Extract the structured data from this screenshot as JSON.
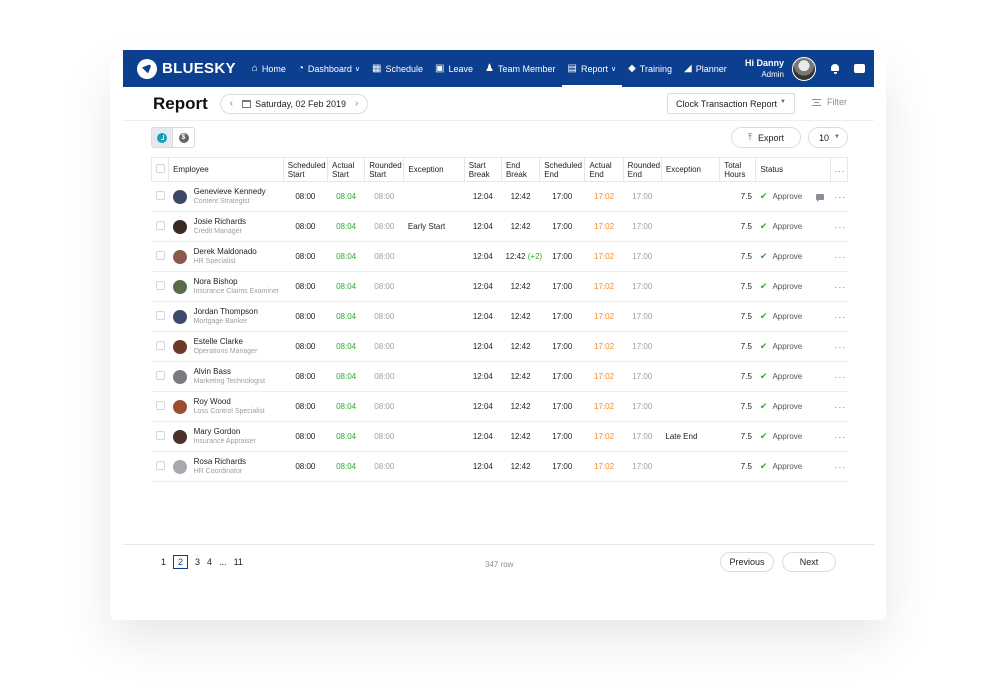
{
  "brand": {
    "name": "BLUESKY"
  },
  "nav": {
    "items": [
      {
        "label": "Home",
        "icon": "home-icon"
      },
      {
        "label": "Dashboard",
        "icon": "dashboard-icon",
        "dropdown": true
      },
      {
        "label": "Schedule",
        "icon": "calendar-icon"
      },
      {
        "label": "Leave",
        "icon": "leave-icon"
      },
      {
        "label": "Team Member",
        "icon": "team-icon"
      },
      {
        "label": "Report",
        "icon": "clipboard-icon",
        "dropdown": true,
        "active": true
      },
      {
        "label": "Training",
        "icon": "graduation-cap-icon"
      },
      {
        "label": "Planner",
        "icon": "pencil-icon"
      }
    ]
  },
  "user": {
    "greeting": "Hi Danny",
    "role": "Admin"
  },
  "header": {
    "title": "Report",
    "date": "Saturday, 02 Feb 2019",
    "report_type": "Clock Transaction Report",
    "filter_label": "Filter"
  },
  "toolbar": {
    "export_label": "Export",
    "page_size": "10"
  },
  "table": {
    "columns": {
      "employee": "Employee",
      "sched_start": [
        "Scheduled",
        "Start"
      ],
      "actual_start": [
        "Actual",
        "Start"
      ],
      "rounded_start": [
        "Rounded",
        "Start"
      ],
      "exception1": "Exception",
      "start_break": [
        "Start",
        "Break"
      ],
      "end_break": [
        "End",
        "Break"
      ],
      "sched_end": [
        "Scheduled",
        "End"
      ],
      "actual_end": [
        "Actual",
        "End"
      ],
      "rounded_end": [
        "Rounded",
        "End"
      ],
      "exception2": "Exception",
      "total_hours": [
        "Total",
        "Hours"
      ],
      "status": "Status",
      "more": "..."
    },
    "rows": [
      {
        "name": "Genevieve Kennedy",
        "title": "Content Strategist",
        "sched_start": "08:00",
        "actual_start": "08:04",
        "rounded_start": "08:00",
        "exception1": "",
        "start_break": "12:04",
        "end_break": "12:42",
        "end_break_extra": "",
        "sched_end": "17:00",
        "actual_end": "17:02",
        "rounded_end": "17:00",
        "exception2": "",
        "total": "7.5",
        "status": "Approve",
        "comment": true,
        "avatar": "#3b4a63"
      },
      {
        "name": "Josie Richards",
        "title": "Credit Manager",
        "sched_start": "08:00",
        "actual_start": "08:04",
        "rounded_start": "08:00",
        "exception1": "Early Start",
        "start_break": "12:04",
        "end_break": "12:42",
        "end_break_extra": "",
        "sched_end": "17:00",
        "actual_end": "17:02",
        "rounded_end": "17:00",
        "exception2": "",
        "total": "7.5",
        "status": "Approve",
        "comment": false,
        "avatar": "#3a2a22"
      },
      {
        "name": "Derek Maldonado",
        "title": "HR Specialist",
        "sched_start": "08:00",
        "actual_start": "08:04",
        "rounded_start": "08:00",
        "exception1": "",
        "start_break": "12:04",
        "end_break": "12:42",
        "end_break_extra": "(+2)",
        "sched_end": "17:00",
        "actual_end": "17:02",
        "rounded_end": "17:00",
        "exception2": "",
        "total": "7.5",
        "status": "Approve",
        "comment": false,
        "avatar": "#8a5a4a"
      },
      {
        "name": "Nora Bishop",
        "title": "Insurance Claims Examiner",
        "sched_start": "08:00",
        "actual_start": "08:04",
        "rounded_start": "08:00",
        "exception1": "",
        "start_break": "12:04",
        "end_break": "12:42",
        "end_break_extra": "",
        "sched_end": "17:00",
        "actual_end": "17:02",
        "rounded_end": "17:00",
        "exception2": "",
        "total": "7.5",
        "status": "Approve",
        "comment": false,
        "avatar": "#5d6b4d"
      },
      {
        "name": "Jordan Thompson",
        "title": "Mortgage Banker",
        "sched_start": "08:00",
        "actual_start": "08:04",
        "rounded_start": "08:00",
        "exception1": "",
        "start_break": "12:04",
        "end_break": "12:42",
        "end_break_extra": "",
        "sched_end": "17:00",
        "actual_end": "17:02",
        "rounded_end": "17:00",
        "exception2": "",
        "total": "7.5",
        "status": "Approve",
        "comment": false,
        "avatar": "#3d4a6a"
      },
      {
        "name": "Estelle Clarke",
        "title": "Operations Manager",
        "sched_start": "08:00",
        "actual_start": "08:04",
        "rounded_start": "08:00",
        "exception1": "",
        "start_break": "12:04",
        "end_break": "12:42",
        "end_break_extra": "",
        "sched_end": "17:00",
        "actual_end": "17:02",
        "rounded_end": "17:00",
        "exception2": "",
        "total": "7.5",
        "status": "Approve",
        "comment": false,
        "avatar": "#6a3a2a"
      },
      {
        "name": "Alvin Bass",
        "title": "Marketing Technologist",
        "sched_start": "08:00",
        "actual_start": "08:04",
        "rounded_start": "08:00",
        "exception1": "",
        "start_break": "12:04",
        "end_break": "12:42",
        "end_break_extra": "",
        "sched_end": "17:00",
        "actual_end": "17:02",
        "rounded_end": "17:00",
        "exception2": "",
        "total": "7.5",
        "status": "Approve",
        "comment": false,
        "avatar": "#7a7a80"
      },
      {
        "name": "Roy Wood",
        "title": "Loss Control Specialist",
        "sched_start": "08:00",
        "actual_start": "08:04",
        "rounded_start": "08:00",
        "exception1": "",
        "start_break": "12:04",
        "end_break": "12:42",
        "end_break_extra": "",
        "sched_end": "17:00",
        "actual_end": "17:02",
        "rounded_end": "17:00",
        "exception2": "",
        "total": "7.5",
        "status": "Approve",
        "comment": false,
        "avatar": "#9a5030"
      },
      {
        "name": "Mary Gordon",
        "title": "Insurance Appraiser",
        "sched_start": "08:00",
        "actual_start": "08:04",
        "rounded_start": "08:00",
        "exception1": "",
        "start_break": "12:04",
        "end_break": "12:42",
        "end_break_extra": "",
        "sched_end": "17:00",
        "actual_end": "17:02",
        "rounded_end": "17:00",
        "exception2": "Late End",
        "total": "7.5",
        "status": "Approve",
        "comment": false,
        "avatar": "#4a3228"
      },
      {
        "name": "Rosa Richards",
        "title": "HR Coordinator",
        "sched_start": "08:00",
        "actual_start": "08:04",
        "rounded_start": "08:00",
        "exception1": "",
        "start_break": "12:04",
        "end_break": "12:42",
        "end_break_extra": "",
        "sched_end": "17:00",
        "actual_end": "17:02",
        "rounded_end": "17:00",
        "exception2": "",
        "total": "7.5",
        "status": "Approve",
        "comment": false,
        "avatar": "#a8a8ae"
      }
    ]
  },
  "pagination": {
    "pages": [
      "1",
      "2",
      "3",
      "4",
      "...",
      "11"
    ],
    "active": "2",
    "row_count": "347 row",
    "previous_label": "Previous",
    "next_label": "Next"
  },
  "colors": {
    "navbar": "#0c3f8f",
    "green": "#2eaa32",
    "orange": "#f08a24",
    "accent": "#19a0b8"
  }
}
